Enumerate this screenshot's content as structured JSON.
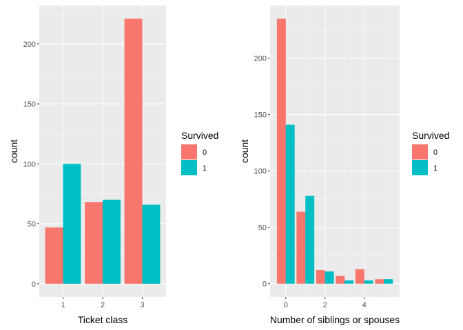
{
  "chart_data": [
    {
      "type": "bar",
      "xlabel": "Ticket class",
      "ylabel": "count",
      "categories": [
        "1",
        "2",
        "3"
      ],
      "series": [
        {
          "name": "0",
          "color": "#F8766D",
          "values": [
            47,
            68,
            221
          ]
        },
        {
          "name": "1",
          "color": "#00BFC4",
          "values": [
            100,
            70,
            66
          ]
        }
      ],
      "xticks": [
        "1",
        "2",
        "3"
      ],
      "yticks": [
        "0",
        "50",
        "100",
        "150",
        "200"
      ],
      "ylim": [
        -11,
        232
      ],
      "legend": {
        "title": "Survived",
        "labels": [
          "0",
          "1"
        ],
        "placement": "right"
      },
      "grid": true
    },
    {
      "type": "bar",
      "xlabel": "Number of siblings or spouses",
      "ylabel": "count",
      "x": [
        0,
        1,
        2,
        3,
        4,
        5
      ],
      "series": [
        {
          "name": "0",
          "color": "#F8766D",
          "values": [
            235,
            64,
            12,
            7,
            13,
            4
          ]
        },
        {
          "name": "1",
          "color": "#00BFC4",
          "values": [
            141,
            78,
            11,
            3,
            3,
            4
          ]
        }
      ],
      "xticks": [
        "0",
        "2",
        "4"
      ],
      "yticks": [
        "0",
        "50",
        "100",
        "150",
        "200"
      ],
      "xlim": [
        -0.8,
        5.8
      ],
      "ylim": [
        -11.75,
        246.75
      ],
      "legend": {
        "title": "Survived",
        "labels": [
          "0",
          "1"
        ],
        "placement": "right"
      },
      "grid": true
    }
  ]
}
